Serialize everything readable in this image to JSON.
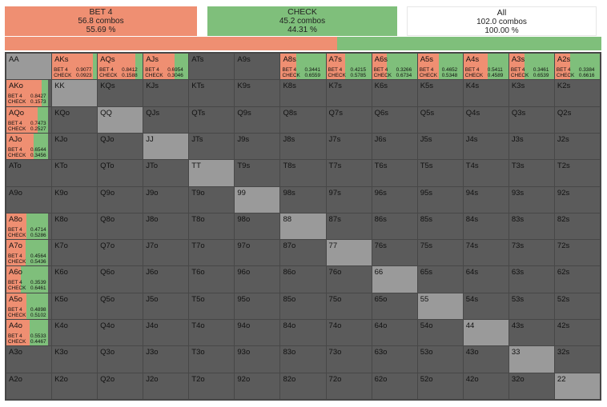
{
  "colors": {
    "bet": "#ef8f72",
    "check": "#7fbf7b",
    "neutral": "#ffffff",
    "cell": "#5b5b5b",
    "pair": "#9a9a9a",
    "grid": "#474747"
  },
  "summary": [
    {
      "name": "BET 4",
      "combos": "56.8 combos",
      "pct": "55.69 %",
      "color": "#ef8f72"
    },
    {
      "name": "CHECK",
      "combos": "45.2 combos",
      "pct": "44.31 %",
      "color": "#7fbf7b"
    },
    {
      "name": "All",
      "combos": "102.0 combos",
      "pct": "100.00 %",
      "color": "#ffffff"
    }
  ],
  "frequency_bar": {
    "bet_fraction": 0.5569,
    "check_fraction": 0.4431
  },
  "ranks": [
    "A",
    "K",
    "Q",
    "J",
    "T",
    "9",
    "8",
    "7",
    "6",
    "5",
    "4",
    "3",
    "2"
  ],
  "labels": {
    "bet": "BET 4",
    "check": "CHECK"
  },
  "strategies": {
    "AKs": {
      "bet": "0.9077",
      "check": "0.0923",
      "bf": 0.9077
    },
    "AQs": {
      "bet": "0.8412",
      "check": "0.1588",
      "bf": 0.8412
    },
    "AJs": {
      "bet": "0.6954",
      "check": "0.3046",
      "bf": 0.6954
    },
    "A8s": {
      "bet": "0.3441",
      "check": "0.6559",
      "bf": 0.3441
    },
    "A7s": {
      "bet": "0.4215",
      "check": "0.5785",
      "bf": 0.4215
    },
    "A6s": {
      "bet": "0.3266",
      "check": "0.6734",
      "bf": 0.3266
    },
    "A5s": {
      "bet": "0.4652",
      "check": "0.5348",
      "bf": 0.4652
    },
    "A4s": {
      "bet": "0.5411",
      "check": "0.4589",
      "bf": 0.5411
    },
    "A3s": {
      "bet": "0.3461",
      "check": "0.6539",
      "bf": 0.3461
    },
    "A2s": {
      "bet": "0.3384",
      "check": "0.6616",
      "bf": 0.3384
    },
    "AKo": {
      "bet": "0.8427",
      "check": "0.1573",
      "bf": 0.8427
    },
    "AQo": {
      "bet": "0.7473",
      "check": "0.2527",
      "bf": 0.7473
    },
    "AJo": {
      "bet": "0.6544",
      "check": "0.3456",
      "bf": 0.6544
    },
    "A8o": {
      "bet": "0.4714",
      "check": "0.5286",
      "bf": 0.4714
    },
    "A7o": {
      "bet": "0.4564",
      "check": "0.5436",
      "bf": 0.4564
    },
    "A6o": {
      "bet": "0.3539",
      "check": "0.6461",
      "bf": 0.3539
    },
    "A5o": {
      "bet": "0.4898",
      "check": "0.5102",
      "bf": 0.4898
    },
    "A4o": {
      "bet": "0.5533",
      "check": "0.4467",
      "bf": 0.5533
    }
  }
}
